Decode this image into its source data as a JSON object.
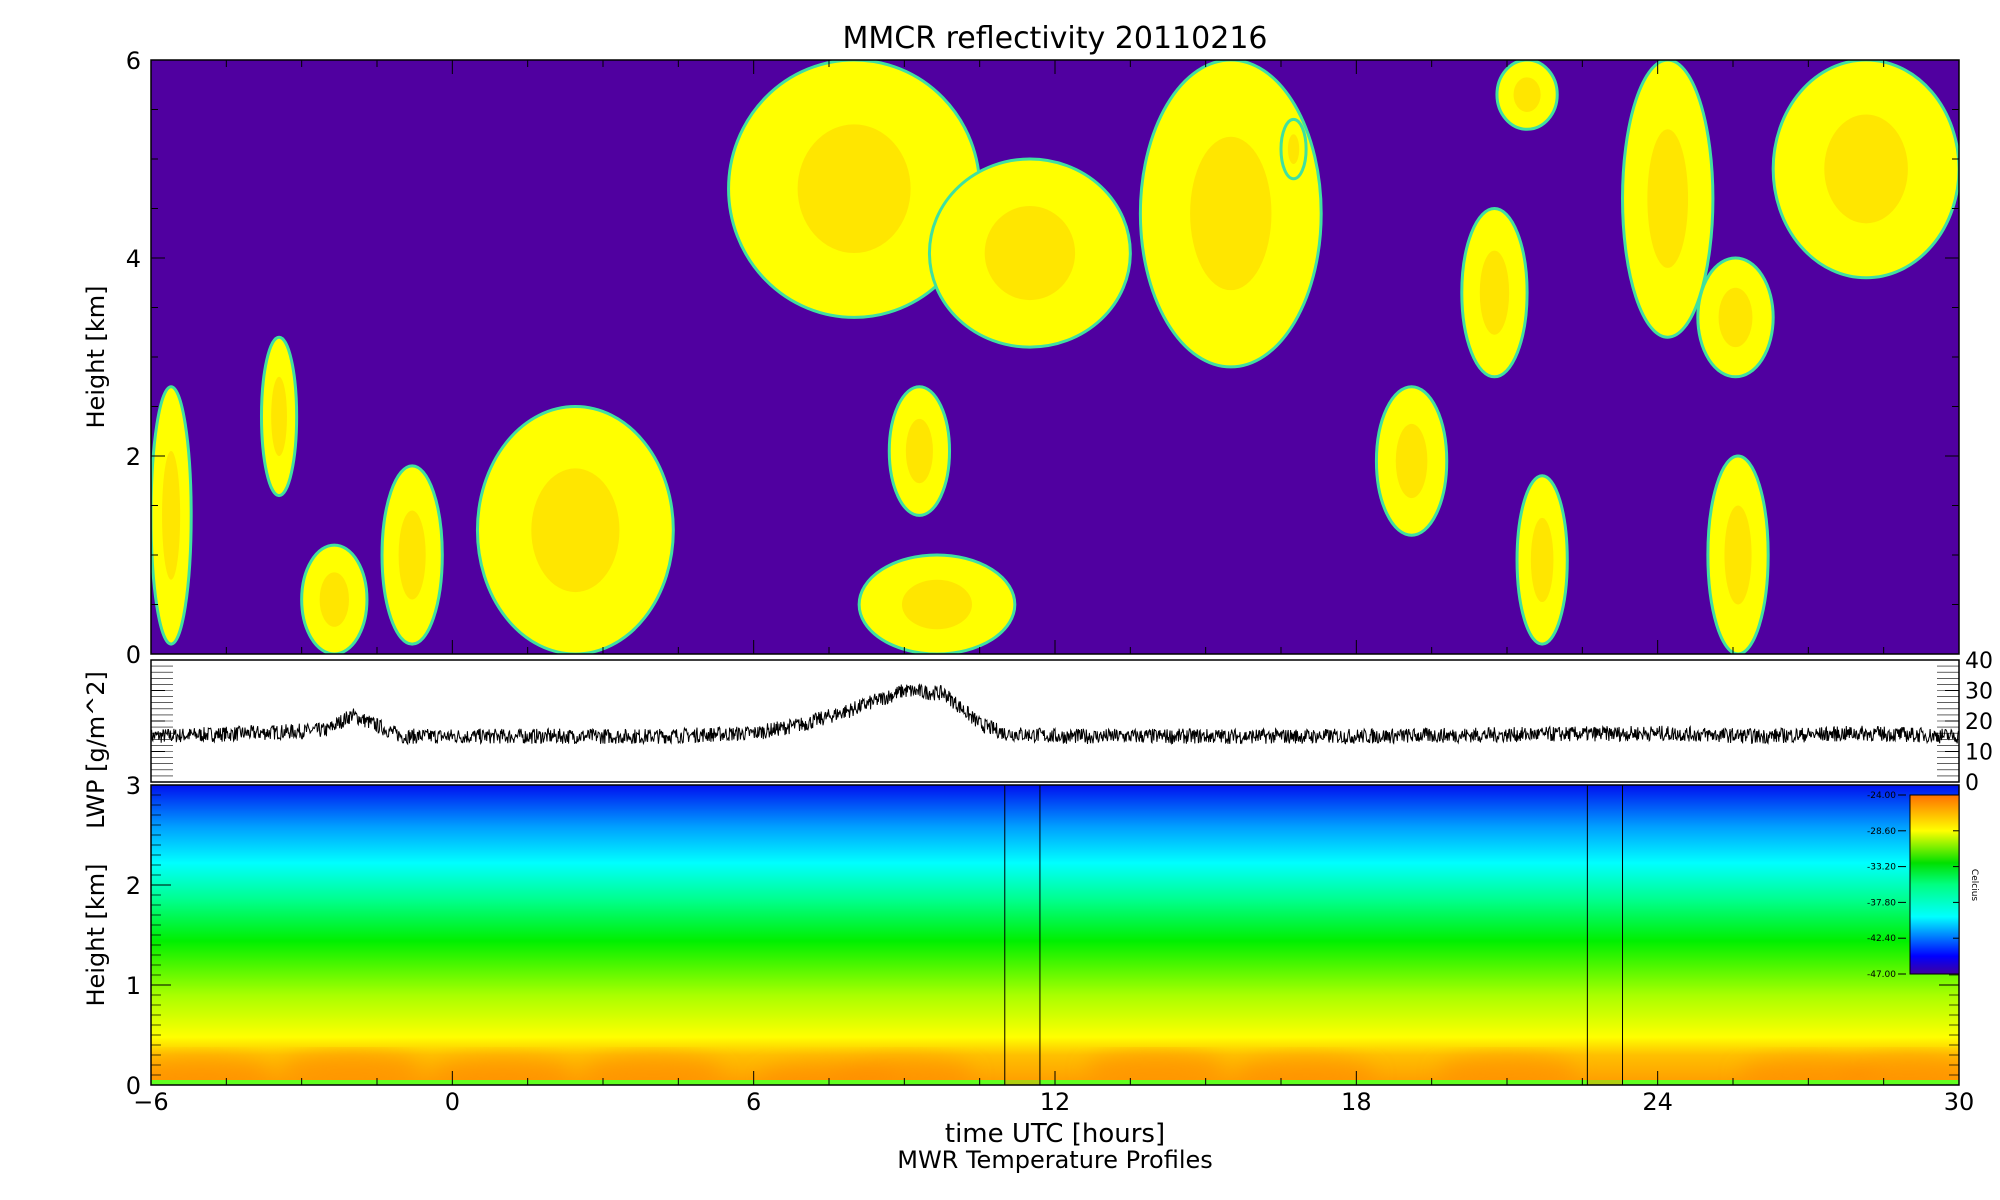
{
  "title": "MMCR reflectivity     20110216",
  "subtitle": "MWR Temperature Profiles",
  "chart_data": [
    {
      "type": "heatmap",
      "name": "MMCR reflectivity",
      "xlabel": "time UTC [hours]",
      "ylabel": "Height [km]",
      "xlim": [
        -6,
        30
      ],
      "ylim": [
        0,
        6
      ],
      "xticks": [
        "-6",
        "0",
        "6",
        "12",
        "18",
        "24",
        "30"
      ],
      "yticks": [
        "0",
        "2",
        "4",
        "6"
      ],
      "background_color": "#5000a0",
      "cloud_color": "#ffff00",
      "cloud_core_color": "#ffc800",
      "cloud_edge_color": "#40e0a0",
      "cloud_regions": [
        {
          "t": [
            -6,
            -5.2
          ],
          "h": [
            0.1,
            2.7
          ]
        },
        {
          "t": [
            -3.8,
            -3.1
          ],
          "h": [
            1.6,
            3.2
          ]
        },
        {
          "t": [
            -3.0,
            -1.7
          ],
          "h": [
            0,
            1.1
          ]
        },
        {
          "t": [
            -1.4,
            -0.2
          ],
          "h": [
            0.1,
            1.9
          ]
        },
        {
          "t": [
            0.5,
            4.4
          ],
          "h": [
            0,
            2.5
          ]
        },
        {
          "t": [
            5.5,
            10.5
          ],
          "h": [
            3.4,
            6
          ]
        },
        {
          "t": [
            9.5,
            13.5
          ],
          "h": [
            3.1,
            5.0
          ]
        },
        {
          "t": [
            8.1,
            11.2
          ],
          "h": [
            0,
            1.0
          ]
        },
        {
          "t": [
            8.7,
            9.9
          ],
          "h": [
            1.4,
            2.7
          ]
        },
        {
          "t": [
            13.7,
            17.3
          ],
          "h": [
            2.9,
            6
          ]
        },
        {
          "t": [
            16.5,
            17.0
          ],
          "h": [
            4.8,
            5.4
          ]
        },
        {
          "t": [
            18.4,
            19.8
          ],
          "h": [
            1.2,
            2.7
          ]
        },
        {
          "t": [
            20.1,
            21.4
          ],
          "h": [
            2.8,
            4.5
          ]
        },
        {
          "t": [
            20.8,
            22.0
          ],
          "h": [
            5.3,
            6
          ]
        },
        {
          "t": [
            21.2,
            22.2
          ],
          "h": [
            0.1,
            1.8
          ]
        },
        {
          "t": [
            23.3,
            25.1
          ],
          "h": [
            3.2,
            6
          ]
        },
        {
          "t": [
            24.8,
            26.3
          ],
          "h": [
            2.8,
            4.0
          ]
        },
        {
          "t": [
            25.0,
            26.2
          ],
          "h": [
            0,
            2.0
          ]
        },
        {
          "t": [
            26.3,
            30.0
          ],
          "h": [
            3.8,
            6
          ]
        }
      ]
    },
    {
      "type": "line",
      "ylabel": "LWP [g/m^2]",
      "xlim": [
        -6,
        30
      ],
      "ylim": [
        0,
        40
      ],
      "yticks": [
        "0",
        "10",
        "20",
        "30",
        "40"
      ],
      "x": [
        -6,
        -4,
        -2.5,
        -2,
        -1,
        0,
        2,
        4,
        6,
        7,
        8,
        9,
        9.8,
        10.5,
        11,
        12,
        18,
        24,
        26,
        28,
        30
      ],
      "y": [
        15,
        16,
        17,
        22,
        15,
        15,
        15,
        15,
        16,
        19,
        24,
        30,
        29,
        19,
        16,
        15,
        15,
        16,
        15,
        16,
        15
      ],
      "line_color": "#000000"
    },
    {
      "type": "heatmap",
      "name": "MWR Temperature Profiles",
      "xlabel": "time UTC [hours]",
      "ylabel": "Height [km]",
      "xlim": [
        -6,
        30
      ],
      "ylim": [
        0,
        3
      ],
      "yticks": [
        "0",
        "1",
        "2",
        "3"
      ],
      "missing_data_bars": [
        [
          11.0,
          11.7
        ],
        [
          22.6,
          23.3
        ]
      ],
      "colorbar": {
        "label": "Celcius",
        "ticks": [
          "-24.00",
          "-28.60",
          "-33.20",
          "-37.80",
          "-42.40",
          "-47.00"
        ],
        "range": [
          -47,
          -24
        ]
      }
    }
  ]
}
